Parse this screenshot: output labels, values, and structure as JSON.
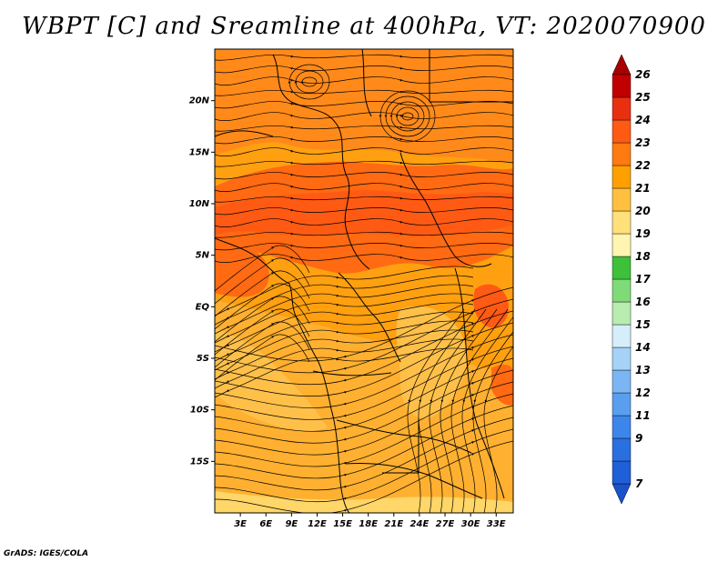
{
  "title": "WBPT [C] and Sreamline at 400hPa, VT: 2020070900",
  "credit": "GrADS: IGES/COLA",
  "map": {
    "lon_range": [
      0,
      35
    ],
    "lat_range": [
      -20,
      25
    ],
    "y_ticks": [
      {
        "lat": 20,
        "label": "20N"
      },
      {
        "lat": 15,
        "label": "15N"
      },
      {
        "lat": 10,
        "label": "10N"
      },
      {
        "lat": 5,
        "label": "5N"
      },
      {
        "lat": 0,
        "label": "EQ"
      },
      {
        "lat": -5,
        "label": "5S"
      },
      {
        "lat": -10,
        "label": "10S"
      },
      {
        "lat": -15,
        "label": "15S"
      }
    ],
    "x_ticks": [
      {
        "lon": 3,
        "label": "3E"
      },
      {
        "lon": 6,
        "label": "6E"
      },
      {
        "lon": 9,
        "label": "9E"
      },
      {
        "lon": 12,
        "label": "12E"
      },
      {
        "lon": 15,
        "label": "15E"
      },
      {
        "lon": 18,
        "label": "18E"
      },
      {
        "lon": 21,
        "label": "21E"
      },
      {
        "lon": 24,
        "label": "24E"
      },
      {
        "lon": 27,
        "label": "27E"
      },
      {
        "lon": 30,
        "label": "30E"
      },
      {
        "lon": 33,
        "label": "33E"
      }
    ]
  },
  "colorbar": {
    "levels": [
      {
        "label": "7",
        "color": "#1f5fd8"
      },
      {
        "label": "9",
        "color": "#2a6fe0"
      },
      {
        "label": "11",
        "color": "#3c86ea"
      },
      {
        "label": "12",
        "color": "#5a9ef0"
      },
      {
        "label": "13",
        "color": "#7ab6f4"
      },
      {
        "label": "14",
        "color": "#a6d2f8"
      },
      {
        "label": "15",
        "color": "#d6eefa"
      },
      {
        "label": "16",
        "color": "#b8ecb0"
      },
      {
        "label": "17",
        "color": "#7fdb78"
      },
      {
        "label": "18",
        "color": "#3ec03a"
      },
      {
        "label": "19",
        "color": "#fff4b0"
      },
      {
        "label": "20",
        "color": "#ffe07a"
      },
      {
        "label": "21",
        "color": "#ffc040"
      },
      {
        "label": "22",
        "color": "#ffa000"
      },
      {
        "label": "23",
        "color": "#ff7a10"
      },
      {
        "label": "24",
        "color": "#ff5a14"
      },
      {
        "label": "25",
        "color": "#e83010"
      },
      {
        "label": "26",
        "color": "#c00000"
      }
    ],
    "bottom_arrow_color": "#1a52cc",
    "top_arrow_color": "#a80000"
  }
}
